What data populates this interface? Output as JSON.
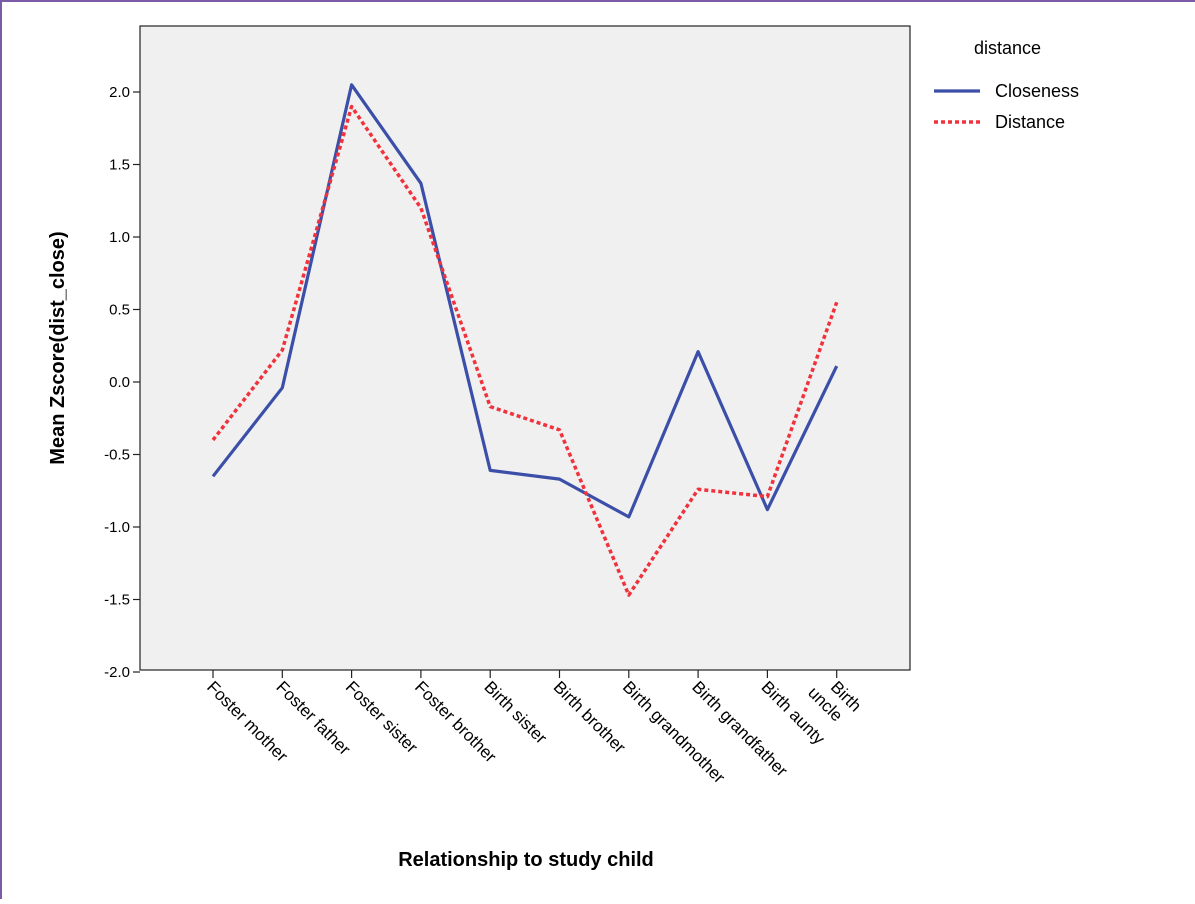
{
  "chart_data": {
    "type": "line",
    "title": "",
    "xlabel": "Relationship to study child",
    "ylabel": "Mean Zscore(dist_close)",
    "ylim": [
      -2.0,
      2.5
    ],
    "yticks": [
      "2.0",
      "1.5",
      "1.0",
      "0.5",
      "0.0",
      "-0.5",
      "-1.0",
      "-1.5",
      "-2.0"
    ],
    "yticks_values": [
      2.0,
      1.5,
      1.0,
      0.5,
      0.0,
      -0.5,
      -1.0,
      -1.5,
      -2.0
    ],
    "categories": [
      "Foster mother",
      "Foster father",
      "Foster sister",
      "Foster brother",
      "Birth sister",
      "Birth brother",
      "Birth grandmother",
      "Birth grandfather",
      "Birth aunty",
      [
        "Birth",
        "uncle"
      ]
    ],
    "legend": {
      "title": "distance",
      "position": "top-right"
    },
    "series": [
      {
        "name": "Closeness",
        "color": "#3b4fa8",
        "style": "solid",
        "values": [
          -0.65,
          -0.04,
          2.05,
          1.37,
          -0.61,
          -0.67,
          -0.93,
          0.21,
          -0.88,
          0.11
        ]
      },
      {
        "name": "Distance",
        "color": "#f0323c",
        "style": "dotted",
        "values": [
          -0.4,
          0.22,
          1.9,
          1.2,
          -0.17,
          -0.33,
          -1.47,
          -0.74,
          -0.79,
          0.55
        ]
      }
    ],
    "grid": false,
    "plot_background": "#f0f0f0"
  }
}
